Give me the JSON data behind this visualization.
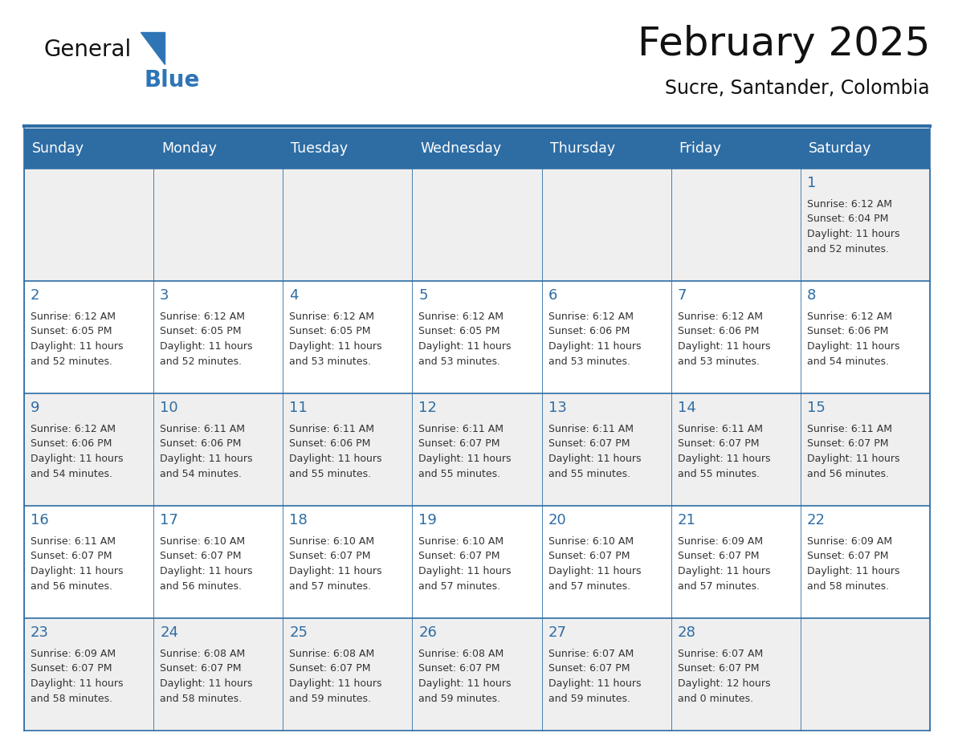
{
  "title": "February 2025",
  "subtitle": "Sucre, Santander, Colombia",
  "header_bg_color": "#2E6DA4",
  "header_text_color": "#FFFFFF",
  "cell_bg_even": "#EFEFEF",
  "cell_bg_odd": "#FFFFFF",
  "day_number_color": "#2E6DA4",
  "cell_text_color": "#333333",
  "border_color": "#2E6DA4",
  "days_of_week": [
    "Sunday",
    "Monday",
    "Tuesday",
    "Wednesday",
    "Thursday",
    "Friday",
    "Saturday"
  ],
  "weeks": [
    [
      {
        "day": null,
        "sunrise": null,
        "sunset": null,
        "daylight_line1": null,
        "daylight_line2": null
      },
      {
        "day": null,
        "sunrise": null,
        "sunset": null,
        "daylight_line1": null,
        "daylight_line2": null
      },
      {
        "day": null,
        "sunrise": null,
        "sunset": null,
        "daylight_line1": null,
        "daylight_line2": null
      },
      {
        "day": null,
        "sunrise": null,
        "sunset": null,
        "daylight_line1": null,
        "daylight_line2": null
      },
      {
        "day": null,
        "sunrise": null,
        "sunset": null,
        "daylight_line1": null,
        "daylight_line2": null
      },
      {
        "day": null,
        "sunrise": null,
        "sunset": null,
        "daylight_line1": null,
        "daylight_line2": null
      },
      {
        "day": 1,
        "sunrise": "6:12 AM",
        "sunset": "6:04 PM",
        "daylight_line1": "Daylight: 11 hours",
        "daylight_line2": "and 52 minutes."
      }
    ],
    [
      {
        "day": 2,
        "sunrise": "6:12 AM",
        "sunset": "6:05 PM",
        "daylight_line1": "Daylight: 11 hours",
        "daylight_line2": "and 52 minutes."
      },
      {
        "day": 3,
        "sunrise": "6:12 AM",
        "sunset": "6:05 PM",
        "daylight_line1": "Daylight: 11 hours",
        "daylight_line2": "and 52 minutes."
      },
      {
        "day": 4,
        "sunrise": "6:12 AM",
        "sunset": "6:05 PM",
        "daylight_line1": "Daylight: 11 hours",
        "daylight_line2": "and 53 minutes."
      },
      {
        "day": 5,
        "sunrise": "6:12 AM",
        "sunset": "6:05 PM",
        "daylight_line1": "Daylight: 11 hours",
        "daylight_line2": "and 53 minutes."
      },
      {
        "day": 6,
        "sunrise": "6:12 AM",
        "sunset": "6:06 PM",
        "daylight_line1": "Daylight: 11 hours",
        "daylight_line2": "and 53 minutes."
      },
      {
        "day": 7,
        "sunrise": "6:12 AM",
        "sunset": "6:06 PM",
        "daylight_line1": "Daylight: 11 hours",
        "daylight_line2": "and 53 minutes."
      },
      {
        "day": 8,
        "sunrise": "6:12 AM",
        "sunset": "6:06 PM",
        "daylight_line1": "Daylight: 11 hours",
        "daylight_line2": "and 54 minutes."
      }
    ],
    [
      {
        "day": 9,
        "sunrise": "6:12 AM",
        "sunset": "6:06 PM",
        "daylight_line1": "Daylight: 11 hours",
        "daylight_line2": "and 54 minutes."
      },
      {
        "day": 10,
        "sunrise": "6:11 AM",
        "sunset": "6:06 PM",
        "daylight_line1": "Daylight: 11 hours",
        "daylight_line2": "and 54 minutes."
      },
      {
        "day": 11,
        "sunrise": "6:11 AM",
        "sunset": "6:06 PM",
        "daylight_line1": "Daylight: 11 hours",
        "daylight_line2": "and 55 minutes."
      },
      {
        "day": 12,
        "sunrise": "6:11 AM",
        "sunset": "6:07 PM",
        "daylight_line1": "Daylight: 11 hours",
        "daylight_line2": "and 55 minutes."
      },
      {
        "day": 13,
        "sunrise": "6:11 AM",
        "sunset": "6:07 PM",
        "daylight_line1": "Daylight: 11 hours",
        "daylight_line2": "and 55 minutes."
      },
      {
        "day": 14,
        "sunrise": "6:11 AM",
        "sunset": "6:07 PM",
        "daylight_line1": "Daylight: 11 hours",
        "daylight_line2": "and 55 minutes."
      },
      {
        "day": 15,
        "sunrise": "6:11 AM",
        "sunset": "6:07 PM",
        "daylight_line1": "Daylight: 11 hours",
        "daylight_line2": "and 56 minutes."
      }
    ],
    [
      {
        "day": 16,
        "sunrise": "6:11 AM",
        "sunset": "6:07 PM",
        "daylight_line1": "Daylight: 11 hours",
        "daylight_line2": "and 56 minutes."
      },
      {
        "day": 17,
        "sunrise": "6:10 AM",
        "sunset": "6:07 PM",
        "daylight_line1": "Daylight: 11 hours",
        "daylight_line2": "and 56 minutes."
      },
      {
        "day": 18,
        "sunrise": "6:10 AM",
        "sunset": "6:07 PM",
        "daylight_line1": "Daylight: 11 hours",
        "daylight_line2": "and 57 minutes."
      },
      {
        "day": 19,
        "sunrise": "6:10 AM",
        "sunset": "6:07 PM",
        "daylight_line1": "Daylight: 11 hours",
        "daylight_line2": "and 57 minutes."
      },
      {
        "day": 20,
        "sunrise": "6:10 AM",
        "sunset": "6:07 PM",
        "daylight_line1": "Daylight: 11 hours",
        "daylight_line2": "and 57 minutes."
      },
      {
        "day": 21,
        "sunrise": "6:09 AM",
        "sunset": "6:07 PM",
        "daylight_line1": "Daylight: 11 hours",
        "daylight_line2": "and 57 minutes."
      },
      {
        "day": 22,
        "sunrise": "6:09 AM",
        "sunset": "6:07 PM",
        "daylight_line1": "Daylight: 11 hours",
        "daylight_line2": "and 58 minutes."
      }
    ],
    [
      {
        "day": 23,
        "sunrise": "6:09 AM",
        "sunset": "6:07 PM",
        "daylight_line1": "Daylight: 11 hours",
        "daylight_line2": "and 58 minutes."
      },
      {
        "day": 24,
        "sunrise": "6:08 AM",
        "sunset": "6:07 PM",
        "daylight_line1": "Daylight: 11 hours",
        "daylight_line2": "and 58 minutes."
      },
      {
        "day": 25,
        "sunrise": "6:08 AM",
        "sunset": "6:07 PM",
        "daylight_line1": "Daylight: 11 hours",
        "daylight_line2": "and 59 minutes."
      },
      {
        "day": 26,
        "sunrise": "6:08 AM",
        "sunset": "6:07 PM",
        "daylight_line1": "Daylight: 11 hours",
        "daylight_line2": "and 59 minutes."
      },
      {
        "day": 27,
        "sunrise": "6:07 AM",
        "sunset": "6:07 PM",
        "daylight_line1": "Daylight: 11 hours",
        "daylight_line2": "and 59 minutes."
      },
      {
        "day": 28,
        "sunrise": "6:07 AM",
        "sunset": "6:07 PM",
        "daylight_line1": "Daylight: 12 hours",
        "daylight_line2": "and 0 minutes."
      },
      {
        "day": null,
        "sunrise": null,
        "sunset": null,
        "daylight_line1": null,
        "daylight_line2": null
      }
    ]
  ],
  "logo_text_general": "General",
  "logo_text_blue": "Blue",
  "logo_color": "#2E75B6"
}
